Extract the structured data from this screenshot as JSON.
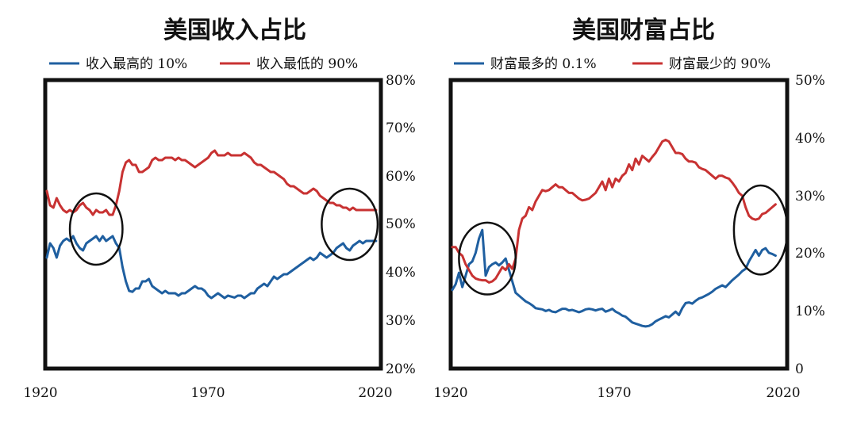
{
  "colors": {
    "blue": "#1f5fa0",
    "red": "#c83232"
  },
  "chart_data": [
    {
      "type": "line",
      "title": "美国收入占比",
      "x_tick_labels": [
        "1920",
        "1970",
        "2020"
      ],
      "y_tick_labels": [
        "20%",
        "30%",
        "40%",
        "50%",
        "60%",
        "70%",
        "80%"
      ],
      "xlim": [
        1917,
        2018
      ],
      "ylim": [
        20,
        80
      ],
      "y_ticks": [
        20,
        30,
        40,
        50,
        60,
        70,
        80
      ],
      "highlight_circles": [
        {
          "year": 1932,
          "value": 49,
          "year_radius": 8,
          "value_radius": 7.5
        },
        {
          "year": 2009,
          "value": 50,
          "year_radius": 8.5,
          "value_radius": 7.5
        }
      ],
      "series": [
        {
          "name": "收入最高的 10%",
          "color": "#1f5fa0",
          "x": [
            1917,
            1918,
            1919,
            1920,
            1921,
            1922,
            1923,
            1924,
            1925,
            1926,
            1927,
            1928,
            1929,
            1930,
            1931,
            1932,
            1933,
            1934,
            1935,
            1936,
            1937,
            1938,
            1939,
            1940,
            1941,
            1942,
            1943,
            1944,
            1945,
            1946,
            1947,
            1948,
            1949,
            1950,
            1951,
            1952,
            1953,
            1954,
            1955,
            1956,
            1957,
            1958,
            1959,
            1960,
            1961,
            1962,
            1963,
            1964,
            1965,
            1966,
            1967,
            1968,
            1969,
            1970,
            1971,
            1972,
            1973,
            1974,
            1975,
            1976,
            1977,
            1978,
            1979,
            1980,
            1981,
            1982,
            1983,
            1984,
            1985,
            1986,
            1987,
            1988,
            1989,
            1990,
            1991,
            1992,
            1993,
            1994,
            1995,
            1996,
            1997,
            1998,
            1999,
            2000,
            2001,
            2002,
            2003,
            2004,
            2005,
            2006,
            2007,
            2008,
            2009,
            2010,
            2011,
            2012,
            2013,
            2014,
            2015,
            2016,
            2017
          ],
          "values": [
            43,
            46,
            45,
            43,
            45.5,
            46.5,
            47,
            46.5,
            47.5,
            46,
            45,
            44.5,
            46,
            46.5,
            47,
            47.5,
            46.5,
            47.5,
            46.5,
            47,
            47.5,
            46,
            45,
            41,
            38,
            36,
            35.8,
            36.5,
            36.5,
            38,
            38,
            38.5,
            37,
            36.5,
            36,
            35.5,
            36,
            35.5,
            35.5,
            35.5,
            35,
            35.5,
            35.5,
            36,
            36.5,
            37,
            36.5,
            36.5,
            36,
            35,
            34.5,
            35,
            35.5,
            35,
            34.5,
            35,
            34.8,
            34.6,
            35,
            35,
            34.5,
            35,
            35.5,
            35.5,
            36.5,
            37,
            37.5,
            37,
            38,
            39,
            38.5,
            39,
            39.5,
            39.5,
            40,
            40.5,
            41,
            41.5,
            42,
            42.5,
            43,
            42.5,
            43,
            44,
            43.5,
            43,
            43.5,
            44,
            45,
            45.5,
            46,
            45,
            44.5,
            45.5,
            46,
            46.5,
            46,
            46.5,
            46.5,
            46.5,
            46.5
          ]
        },
        {
          "name": "收入最低的 90%",
          "color": "#c83232",
          "x": [
            1917,
            1918,
            1919,
            1920,
            1921,
            1922,
            1923,
            1924,
            1925,
            1926,
            1927,
            1928,
            1929,
            1930,
            1931,
            1932,
            1933,
            1934,
            1935,
            1936,
            1937,
            1938,
            1939,
            1940,
            1941,
            1942,
            1943,
            1944,
            1945,
            1946,
            1947,
            1948,
            1949,
            1950,
            1951,
            1952,
            1953,
            1954,
            1955,
            1956,
            1957,
            1958,
            1959,
            1960,
            1961,
            1962,
            1963,
            1964,
            1965,
            1966,
            1967,
            1968,
            1969,
            1970,
            1971,
            1972,
            1973,
            1974,
            1975,
            1976,
            1977,
            1978,
            1979,
            1980,
            1981,
            1982,
            1983,
            1984,
            1985,
            1986,
            1987,
            1988,
            1989,
            1990,
            1991,
            1992,
            1993,
            1994,
            1995,
            1996,
            1997,
            1998,
            1999,
            2000,
            2001,
            2002,
            2003,
            2004,
            2005,
            2006,
            2007,
            2008,
            2009,
            2010,
            2011,
            2012,
            2013,
            2014,
            2015,
            2016,
            2017
          ],
          "values": [
            57,
            54,
            53.5,
            55.5,
            54,
            53,
            52.5,
            53,
            52.5,
            53,
            54,
            54.5,
            53.5,
            53,
            52,
            53,
            52.5,
            52.5,
            53,
            52,
            52,
            54,
            57,
            61,
            63,
            63.5,
            62.5,
            62.5,
            61,
            61,
            61.5,
            62,
            63.5,
            64,
            63.5,
            63.5,
            64,
            64,
            64,
            63.5,
            64,
            63.5,
            63.5,
            63,
            62.5,
            62,
            62.5,
            63,
            63.5,
            64,
            65,
            65.5,
            64.5,
            64.5,
            64.5,
            65,
            64.5,
            64.5,
            64.5,
            64.5,
            65,
            64.5,
            64,
            63,
            62.5,
            62.5,
            62,
            61.5,
            61,
            61,
            60.5,
            60,
            59.5,
            58.5,
            58,
            58,
            57.5,
            57,
            56.5,
            56.5,
            57,
            57.5,
            57,
            56,
            55.5,
            55,
            54.5,
            54.5,
            54,
            54,
            53.5,
            53.5,
            53,
            53.5,
            53,
            53,
            53,
            53,
            53,
            53,
            53
          ]
        }
      ]
    },
    {
      "type": "line",
      "title": "美国财富占比",
      "x_tick_labels": [
        "1920",
        "1970",
        "2020"
      ],
      "y_tick_labels": [
        "0",
        "10%",
        "20%",
        "30%",
        "40%",
        "50%"
      ],
      "xlim": [
        1920,
        2020
      ],
      "ylim": [
        0,
        50
      ],
      "y_ticks": [
        0,
        10,
        20,
        30,
        40,
        50
      ],
      "highlight_circles": [
        {
          "year": 1930.5,
          "value": 19,
          "year_radius": 8.5,
          "value_radius": 6.3
        },
        {
          "year": 2012.5,
          "value": 24,
          "year_radius": 8,
          "value_radius": 7.8
        }
      ],
      "series": [
        {
          "name": "财富最多的 0.1%",
          "color": "#1f5fa0",
          "x": [
            1920,
            1921,
            1922,
            1923,
            1924,
            1925,
            1926,
            1927,
            1928,
            1929,
            1930,
            1931,
            1932,
            1933,
            1934,
            1935,
            1936,
            1937,
            1938,
            1939,
            1940,
            1941,
            1942,
            1943,
            1944,
            1945,
            1946,
            1947,
            1948,
            1949,
            1950,
            1951,
            1952,
            1953,
            1954,
            1955,
            1956,
            1957,
            1958,
            1959,
            1960,
            1961,
            1962,
            1963,
            1964,
            1965,
            1966,
            1967,
            1968,
            1969,
            1970,
            1971,
            1972,
            1973,
            1974,
            1975,
            1976,
            1977,
            1978,
            1979,
            1980,
            1981,
            1982,
            1983,
            1984,
            1985,
            1986,
            1987,
            1988,
            1989,
            1990,
            1991,
            1992,
            1993,
            1994,
            1995,
            1996,
            1997,
            1998,
            1999,
            2000,
            2001,
            2002,
            2003,
            2004,
            2005,
            2006,
            2007,
            2008,
            2009,
            2010,
            2011,
            2012,
            2013,
            2014,
            2015,
            2016,
            2017
          ],
          "values": [
            13.5,
            14.5,
            16.5,
            14,
            16,
            18,
            18.5,
            20,
            22.5,
            24,
            16,
            17.5,
            18,
            18.3,
            17.8,
            18.3,
            19,
            17,
            15,
            13,
            12.5,
            12,
            11.5,
            11.2,
            10.8,
            10.3,
            10.2,
            10.1,
            9.8,
            10,
            9.7,
            9.6,
            9.9,
            10.2,
            10.2,
            9.9,
            10,
            9.8,
            9.6,
            9.8,
            10.1,
            10.2,
            10.1,
            9.9,
            10.1,
            10.2,
            9.7,
            9.9,
            10.2,
            9.7,
            9.4,
            9,
            8.8,
            8.3,
            7.8,
            7.6,
            7.4,
            7.2,
            7.1,
            7.2,
            7.5,
            8,
            8.3,
            8.6,
            8.9,
            8.7,
            9.2,
            9.7,
            9.1,
            10.3,
            11.2,
            11.3,
            11.1,
            11.6,
            12,
            12.2,
            12.5,
            12.8,
            13.2,
            13.7,
            14,
            14.3,
            14,
            14.6,
            15.2,
            15.7,
            16.2,
            16.8,
            17.2,
            18.5,
            19.5,
            20.5,
            19.5,
            20.5,
            20.8,
            20,
            19.8,
            19.5
          ]
        },
        {
          "name": "财富最少的 90%",
          "color": "#c83232",
          "x": [
            1920,
            1921,
            1922,
            1923,
            1924,
            1925,
            1926,
            1927,
            1928,
            1929,
            1930,
            1931,
            1932,
            1933,
            1934,
            1935,
            1936,
            1937,
            1938,
            1939,
            1940,
            1941,
            1942,
            1943,
            1944,
            1945,
            1946,
            1947,
            1948,
            1949,
            1950,
            1951,
            1952,
            1953,
            1954,
            1955,
            1956,
            1957,
            1958,
            1959,
            1960,
            1961,
            1962,
            1963,
            1964,
            1965,
            1966,
            1967,
            1968,
            1969,
            1970,
            1971,
            1972,
            1973,
            1974,
            1975,
            1976,
            1977,
            1978,
            1979,
            1980,
            1981,
            1982,
            1983,
            1984,
            1985,
            1986,
            1987,
            1988,
            1989,
            1990,
            1991,
            1992,
            1993,
            1994,
            1995,
            1996,
            1997,
            1998,
            1999,
            2000,
            2001,
            2002,
            2003,
            2004,
            2005,
            2006,
            2007,
            2008,
            2009,
            2010,
            2011,
            2012,
            2013,
            2014,
            2015,
            2016,
            2017
          ],
          "values": [
            21,
            21,
            20,
            19.5,
            18,
            17,
            16,
            15.5,
            15.3,
            15.2,
            15.2,
            14.8,
            15,
            15.5,
            16.5,
            17.5,
            17,
            18,
            17.2,
            19,
            24,
            26,
            26.5,
            28,
            27.5,
            29,
            30,
            31,
            30.8,
            31,
            31.5,
            32,
            31.5,
            31.5,
            31,
            30.5,
            30.5,
            30,
            29.5,
            29.2,
            29.3,
            29.5,
            30,
            30.5,
            31.5,
            32.5,
            31,
            33,
            31.5,
            33,
            32.5,
            33.5,
            34,
            35.5,
            34.5,
            36.5,
            35.5,
            37,
            36.5,
            36,
            36.8,
            37.5,
            38.5,
            39.5,
            39.8,
            39.5,
            38.5,
            37.5,
            37.5,
            37.3,
            36.5,
            36,
            36,
            35.8,
            35,
            34.7,
            34.5,
            34,
            33.5,
            33,
            33.5,
            33.5,
            33.2,
            33,
            32.3,
            31.5,
            30.5,
            30,
            28,
            26.5,
            26,
            25.8,
            26,
            26.8,
            27,
            27.5,
            28,
            28.5
          ]
        }
      ]
    }
  ]
}
